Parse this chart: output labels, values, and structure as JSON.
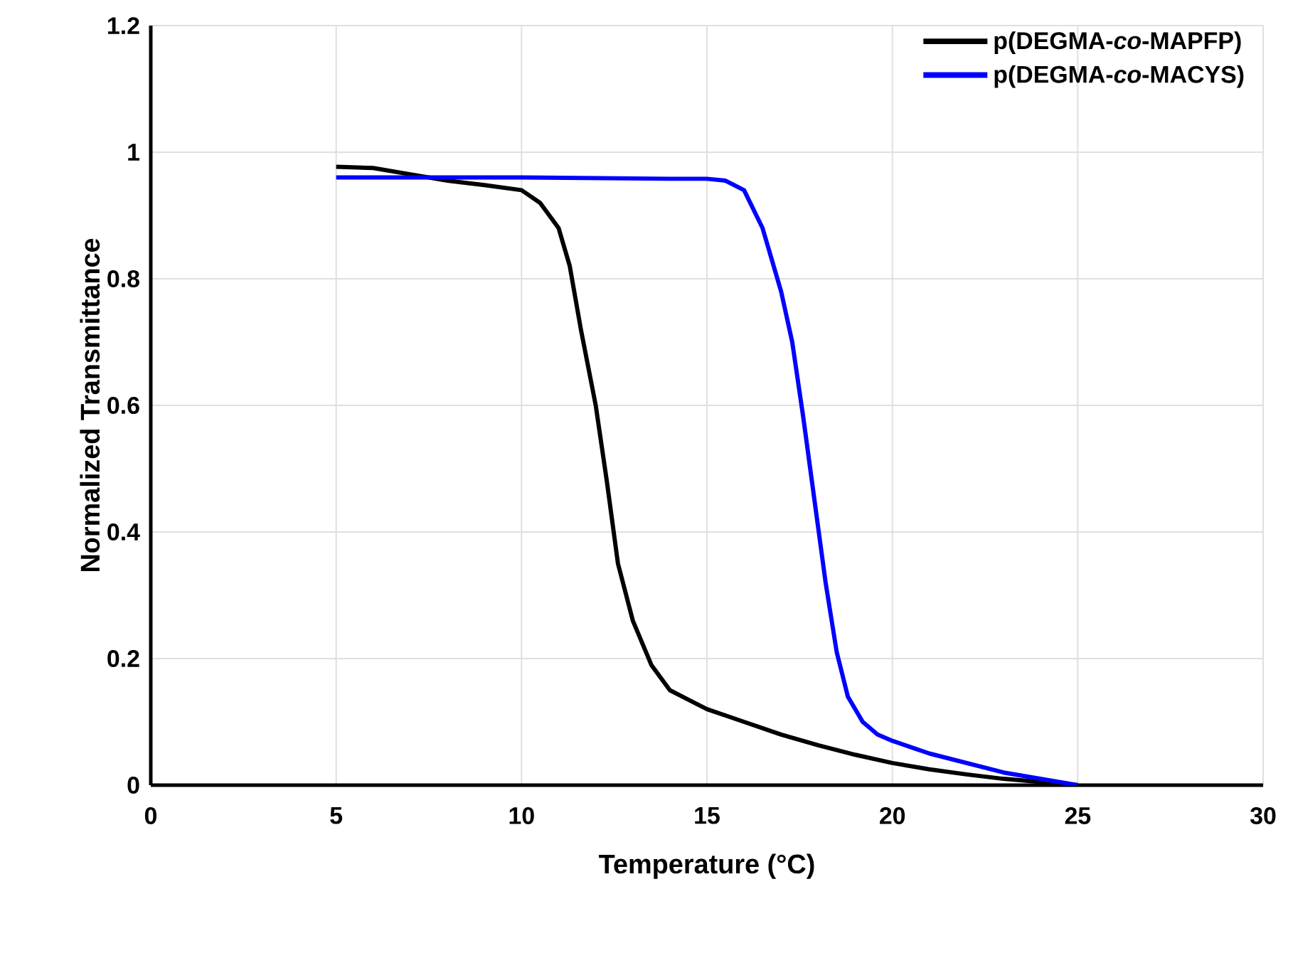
{
  "chart_data": {
    "type": "line",
    "xlabel": "Temperature (°C)",
    "ylabel": "Normalized Transmittance",
    "xlim": [
      0,
      30
    ],
    "xticks": [
      0,
      5,
      10,
      15,
      20,
      25,
      30
    ],
    "ylim": [
      0,
      1.2
    ],
    "yticks": [
      0,
      0.2,
      0.4,
      0.6,
      0.8,
      1,
      1.2
    ],
    "grid": true,
    "legend": "top right",
    "marker": "none",
    "line_style": "solid",
    "series": [
      {
        "name": "p(DEGMA-*co*-MAPFP)",
        "color": "#000000",
        "x": [
          5,
          6,
          7,
          8,
          9,
          10,
          10.5,
          11,
          11.3,
          11.6,
          12,
          12.3,
          12.6,
          13,
          13.5,
          14,
          14.5,
          15,
          16,
          17,
          18,
          19,
          20,
          21,
          22,
          23,
          24,
          25
        ],
        "values": [
          0.977,
          0.975,
          0.965,
          0.955,
          0.948,
          0.94,
          0.92,
          0.88,
          0.82,
          0.72,
          0.6,
          0.48,
          0.35,
          0.26,
          0.19,
          0.15,
          0.135,
          0.12,
          0.1,
          0.08,
          0.063,
          0.048,
          0.035,
          0.025,
          0.017,
          0.01,
          0.005,
          0
        ]
      },
      {
        "name": "p(DEGMA-*co*-MACYS)",
        "color": "#0000ff",
        "x": [
          5,
          10,
          14,
          15,
          15.5,
          16,
          16.5,
          17,
          17.3,
          17.6,
          17.9,
          18.2,
          18.5,
          18.8,
          19.2,
          19.6,
          20,
          20.5,
          21,
          22,
          23,
          24,
          25
        ],
        "values": [
          0.96,
          0.96,
          0.958,
          0.958,
          0.955,
          0.94,
          0.88,
          0.78,
          0.7,
          0.58,
          0.45,
          0.32,
          0.21,
          0.14,
          0.1,
          0.08,
          0.07,
          0.06,
          0.05,
          0.035,
          0.02,
          0.01,
          0
        ]
      }
    ]
  }
}
